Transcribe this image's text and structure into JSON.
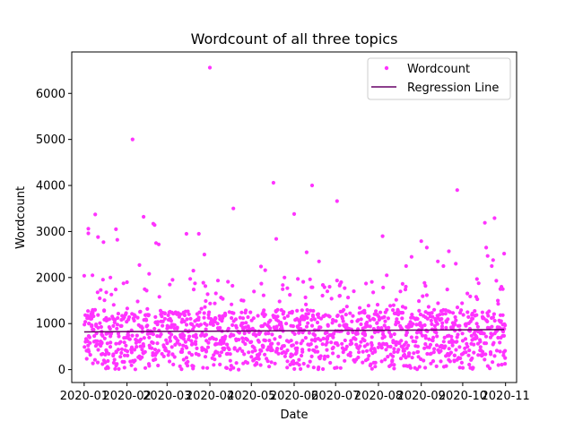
{
  "chart_data": {
    "type": "scatter",
    "title": "Wordcount of all three topics",
    "xlabel": "Date",
    "ylabel": "Wordcount",
    "xlim": [
      "2019-12-23",
      "2020-11-09"
    ],
    "ylim": [
      -280,
      6900
    ],
    "x_ticks": [
      "2020-01",
      "2020-02",
      "2020-03",
      "2020-04",
      "2020-05",
      "2020-06",
      "2020-07",
      "2020-08",
      "2020-09",
      "2020-10",
      "2020-11"
    ],
    "y_ticks": [
      0,
      1000,
      2000,
      3000,
      4000,
      5000,
      6000
    ],
    "legend_position": "top-right",
    "series": [
      {
        "name": "Wordcount",
        "kind": "scatter",
        "color": "#ff33ff",
        "points": [
          {
            "x": "2020-01-01",
            "y": 2040
          },
          {
            "x": "2020-01-04",
            "y": 3060
          },
          {
            "x": "2020-01-04",
            "y": 2960
          },
          {
            "x": "2020-01-09",
            "y": 3370
          },
          {
            "x": "2020-01-11",
            "y": 2880
          },
          {
            "x": "2020-01-15",
            "y": 2770
          },
          {
            "x": "2020-01-07",
            "y": 2050
          },
          {
            "x": "2020-01-13",
            "y": 1730
          },
          {
            "x": "2020-01-17",
            "y": 1680
          },
          {
            "x": "2020-01-20",
            "y": 2000
          },
          {
            "x": "2020-01-25",
            "y": 2820
          },
          {
            "x": "2020-01-24",
            "y": 3050
          },
          {
            "x": "2020-02-01",
            "y": 1900
          },
          {
            "x": "2020-02-05",
            "y": 5000
          },
          {
            "x": "2020-02-10",
            "y": 2270
          },
          {
            "x": "2020-02-13",
            "y": 3320
          },
          {
            "x": "2020-02-20",
            "y": 3170
          },
          {
            "x": "2020-02-21",
            "y": 3140
          },
          {
            "x": "2020-02-22",
            "y": 2750
          },
          {
            "x": "2020-02-24",
            "y": 2720
          },
          {
            "x": "2020-02-17",
            "y": 2080
          },
          {
            "x": "2020-03-05",
            "y": 1950
          },
          {
            "x": "2020-03-15",
            "y": 2950
          },
          {
            "x": "2020-03-20",
            "y": 2150
          },
          {
            "x": "2020-03-24",
            "y": 2950
          },
          {
            "x": "2020-03-28",
            "y": 2500
          },
          {
            "x": "2020-04-01",
            "y": 6560
          },
          {
            "x": "2020-04-18",
            "y": 3500
          },
          {
            "x": "2020-05-08",
            "y": 2240
          },
          {
            "x": "2020-05-11",
            "y": 2160
          },
          {
            "x": "2020-05-17",
            "y": 4060
          },
          {
            "x": "2020-05-19",
            "y": 2840
          },
          {
            "x": "2020-05-25",
            "y": 2000
          },
          {
            "x": "2020-06-01",
            "y": 3380
          },
          {
            "x": "2020-06-10",
            "y": 2550
          },
          {
            "x": "2020-06-14",
            "y": 4000
          },
          {
            "x": "2020-06-19",
            "y": 2350
          },
          {
            "x": "2020-06-25",
            "y": 1700
          },
          {
            "x": "2020-07-02",
            "y": 3660
          },
          {
            "x": "2020-07-05",
            "y": 1900
          },
          {
            "x": "2020-07-23",
            "y": 1870
          },
          {
            "x": "2020-08-04",
            "y": 2900
          },
          {
            "x": "2020-08-07",
            "y": 2050
          },
          {
            "x": "2020-08-12",
            "y": 1400
          },
          {
            "x": "2020-08-15",
            "y": 1300
          },
          {
            "x": "2020-08-21",
            "y": 2250
          },
          {
            "x": "2020-08-25",
            "y": 2450
          },
          {
            "x": "2020-09-01",
            "y": 2790
          },
          {
            "x": "2020-09-05",
            "y": 2650
          },
          {
            "x": "2020-09-13",
            "y": 2350
          },
          {
            "x": "2020-09-17",
            "y": 2250
          },
          {
            "x": "2020-09-21",
            "y": 2570
          },
          {
            "x": "2020-09-26",
            "y": 2300
          },
          {
            "x": "2020-09-27",
            "y": 3900
          },
          {
            "x": "2020-10-17",
            "y": 3190
          },
          {
            "x": "2020-10-18",
            "y": 2650
          },
          {
            "x": "2020-10-19",
            "y": 2470
          },
          {
            "x": "2020-10-22",
            "y": 2250
          },
          {
            "x": "2020-10-23",
            "y": 2380
          },
          {
            "x": "2020-10-24",
            "y": 3290
          },
          {
            "x": "2020-10-29",
            "y": 1800
          },
          {
            "x": "2020-10-31",
            "y": 2520
          },
          {
            "x": "2020-10-30",
            "y": 1750
          }
        ],
        "bulk": {
          "x_range": [
            "2020-01-01",
            "2020-10-31"
          ],
          "typical_range": [
            300,
            1300
          ],
          "median": 750,
          "min": 0,
          "approx_count": 1400
        }
      },
      {
        "name": "Regression Line",
        "kind": "line",
        "color": "#660066",
        "x": [
          "2020-01-01",
          "2020-10-31"
        ],
        "y": [
          820,
          870
        ]
      }
    ]
  }
}
